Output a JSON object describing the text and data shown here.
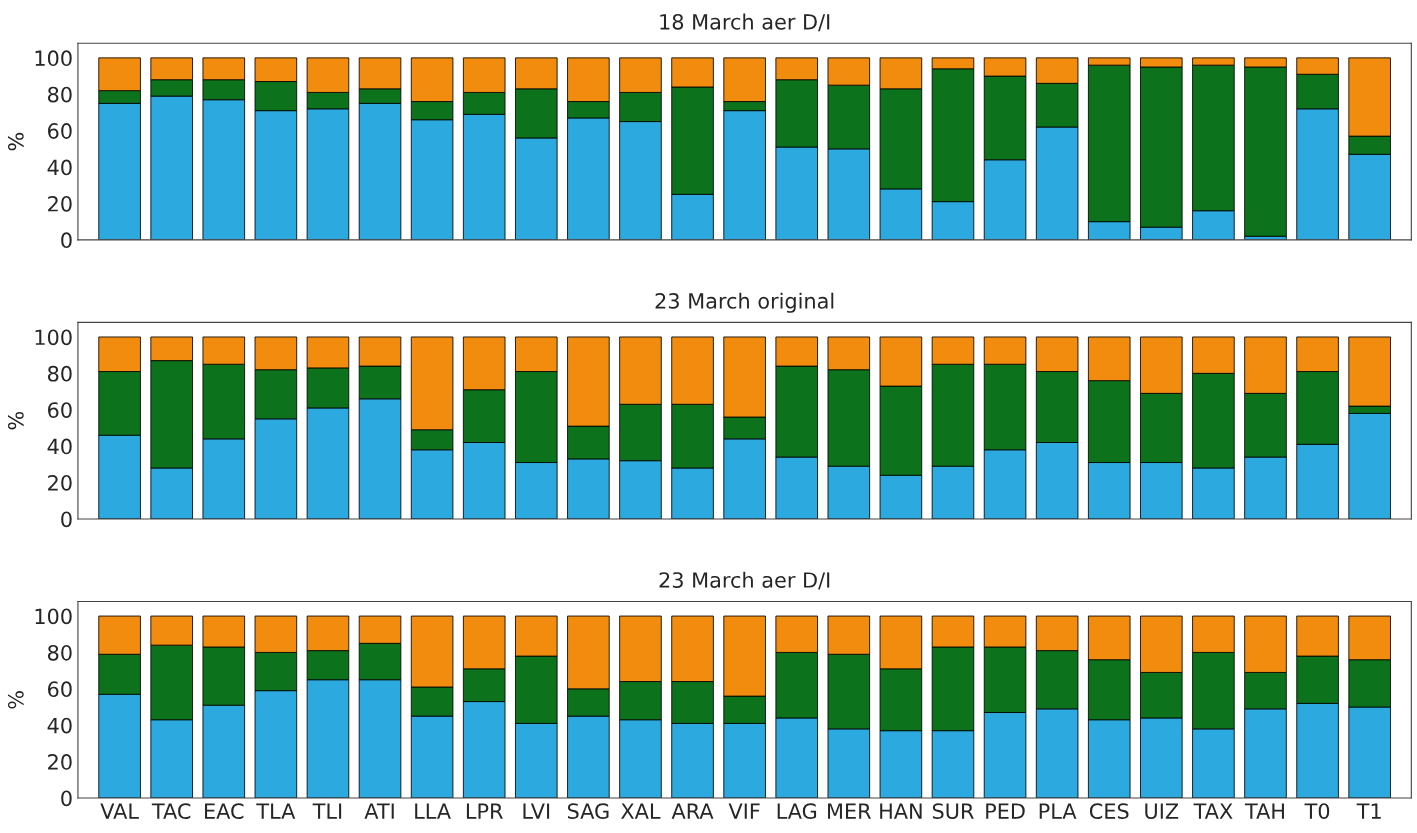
{
  "chart_data": [
    {
      "type": "bar",
      "title": "18 March aer D/I",
      "ylabel": "%",
      "stacked": true,
      "ylim": [
        0,
        108
      ],
      "yticks": [
        0,
        20,
        40,
        60,
        80,
        100
      ],
      "categories": [
        null,
        null,
        null,
        null,
        null,
        null,
        null,
        null,
        null,
        null,
        null,
        null,
        null,
        null,
        null,
        null,
        null,
        null,
        null,
        null,
        null,
        null,
        null,
        null,
        null
      ],
      "series": [
        {
          "color": "#2ca9de",
          "values": [
            75,
            79,
            77,
            71,
            72,
            75,
            66,
            69,
            56,
            67,
            65,
            25,
            71,
            51,
            50,
            28,
            21,
            44,
            62,
            10,
            7,
            16,
            2,
            72,
            47
          ]
        },
        {
          "color": "#0c731c",
          "values": [
            7,
            9,
            11,
            16,
            9,
            8,
            10,
            12,
            27,
            9,
            16,
            59,
            5,
            37,
            35,
            55,
            73,
            46,
            24,
            86,
            88,
            80,
            93,
            19,
            10
          ]
        },
        {
          "color": "#f28c0f",
          "values": [
            18,
            12,
            12,
            13,
            19,
            17,
            24,
            19,
            17,
            24,
            19,
            16,
            24,
            12,
            15,
            17,
            6,
            10,
            14,
            4,
            5,
            4,
            5,
            9,
            43
          ]
        }
      ]
    },
    {
      "type": "bar",
      "title": "23 March original",
      "ylabel": "%",
      "stacked": true,
      "ylim": [
        0,
        108
      ],
      "yticks": [
        0,
        20,
        40,
        60,
        80,
        100
      ],
      "categories": [
        null,
        null,
        null,
        null,
        null,
        null,
        null,
        null,
        null,
        null,
        null,
        null,
        null,
        null,
        null,
        null,
        null,
        null,
        null,
        null,
        null,
        null,
        null,
        null,
        null
      ],
      "series": [
        {
          "color": "#2ca9de",
          "values": [
            46,
            28,
            44,
            55,
            61,
            66,
            38,
            42,
            31,
            33,
            32,
            28,
            44,
            34,
            29,
            24,
            29,
            38,
            42,
            31,
            31,
            28,
            34,
            41,
            58
          ]
        },
        {
          "color": "#0c731c",
          "values": [
            35,
            59,
            41,
            27,
            22,
            18,
            11,
            29,
            50,
            18,
            31,
            35,
            12,
            50,
            53,
            49,
            56,
            47,
            39,
            45,
            38,
            52,
            35,
            40,
            4
          ]
        },
        {
          "color": "#f28c0f",
          "values": [
            19,
            13,
            15,
            18,
            17,
            16,
            51,
            29,
            19,
            49,
            37,
            37,
            44,
            16,
            18,
            27,
            15,
            15,
            19,
            24,
            31,
            20,
            31,
            19,
            38
          ]
        }
      ]
    },
    {
      "type": "bar",
      "title": "23 March aer D/I",
      "ylabel": "%",
      "stacked": true,
      "ylim": [
        0,
        108
      ],
      "yticks": [
        0,
        20,
        40,
        60,
        80,
        100
      ],
      "categories": [
        "VAL",
        "TAC",
        "EAC",
        "TLA",
        "TLI",
        "ATI",
        "LLA",
        "LPR",
        "LVI",
        "SAG",
        "XAL",
        "ARA",
        "VIF",
        "LAG",
        "MER",
        "HAN",
        "SUR",
        "PED",
        "PLA",
        "CES",
        "UIZ",
        "TAX",
        "TAH",
        "T0",
        "T1"
      ],
      "series": [
        {
          "color": "#2ca9de",
          "values": [
            57,
            43,
            51,
            59,
            65,
            65,
            45,
            53,
            41,
            45,
            43,
            41,
            41,
            44,
            38,
            37,
            37,
            47,
            49,
            43,
            44,
            38,
            49,
            52,
            50
          ]
        },
        {
          "color": "#0c731c",
          "values": [
            22,
            41,
            32,
            21,
            16,
            20,
            16,
            18,
            37,
            15,
            21,
            23,
            15,
            36,
            41,
            34,
            46,
            36,
            32,
            33,
            25,
            42,
            20,
            26,
            26
          ]
        },
        {
          "color": "#f28c0f",
          "values": [
            21,
            16,
            17,
            20,
            19,
            15,
            39,
            29,
            22,
            40,
            36,
            36,
            44,
            20,
            21,
            29,
            17,
            17,
            19,
            24,
            31,
            20,
            31,
            22,
            24
          ]
        }
      ]
    }
  ]
}
